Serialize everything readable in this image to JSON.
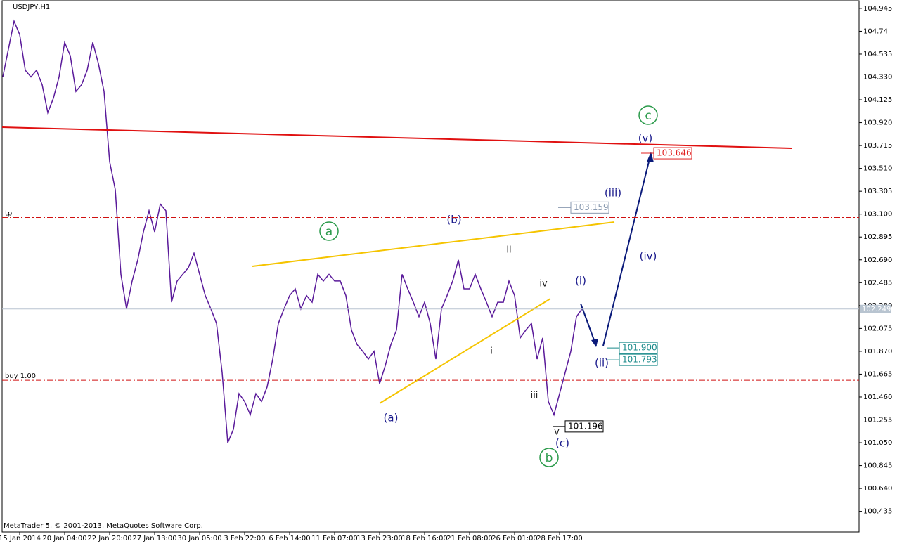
{
  "chart_data": {
    "type": "line",
    "title": "USDJPY,H1",
    "footer": "MetaTrader 5, © 2001-2013, MetaQuotes Software Corp.",
    "categories": [
      null,
      null,
      null,
      "15 Jan 2014",
      null,
      null,
      null,
      null,
      null,
      null,
      null,
      "20 Jan 04:00",
      null,
      null,
      null,
      null,
      null,
      null,
      null,
      "22 Jan 20:00",
      null,
      null,
      null,
      null,
      null,
      null,
      null,
      "27 Jan 13:00",
      null,
      null,
      null,
      null,
      null,
      null,
      null,
      "30 Jan 05:00",
      null,
      null,
      null,
      null,
      null,
      null,
      null,
      "3 Feb 22:00",
      null,
      null,
      null,
      null,
      null,
      null,
      null,
      "6 Feb 14:00",
      null,
      null,
      null,
      null,
      null,
      null,
      null,
      "11 Feb 07:00",
      null,
      null,
      null,
      null,
      null,
      null,
      null,
      "13 Feb 23:00",
      null,
      null,
      null,
      null,
      null,
      null,
      null,
      "18 Feb 16:00",
      null,
      null,
      null,
      null,
      null,
      null,
      null,
      "21 Feb 08:00",
      null,
      null,
      null,
      null,
      null,
      null,
      null,
      "26 Feb 01:00",
      null,
      null,
      null,
      null,
      null,
      null,
      null,
      "28 Feb 17:00",
      null,
      null,
      null,
      null
    ],
    "series": [
      {
        "name": "USDJPY",
        "color": "#5a1a9a",
        "values": [
          104.33,
          104.58,
          104.83,
          104.71,
          104.39,
          104.33,
          104.39,
          104.26,
          104.01,
          104.14,
          104.33,
          104.64,
          104.52,
          104.2,
          104.26,
          104.39,
          104.64,
          104.45,
          104.2,
          103.57,
          103.32,
          102.56,
          102.25,
          102.5,
          102.69,
          102.94,
          103.13,
          102.94,
          103.19,
          103.13,
          102.31,
          102.5,
          102.56,
          102.62,
          102.75,
          102.56,
          102.37,
          102.25,
          102.12,
          101.68,
          101.05,
          101.17,
          101.49,
          101.42,
          101.3,
          101.49,
          101.42,
          101.55,
          101.8,
          102.12,
          102.25,
          102.37,
          102.43,
          102.25,
          102.37,
          102.31,
          102.56,
          102.5,
          102.56,
          102.5,
          102.5,
          102.37,
          102.06,
          101.93,
          101.87,
          101.8,
          101.87,
          101.58,
          101.74,
          101.93,
          102.06,
          102.56,
          102.43,
          102.31,
          102.18,
          102.31,
          102.12,
          101.8,
          102.25,
          102.37,
          102.5,
          102.69,
          102.43,
          102.43,
          102.56,
          102.43,
          102.31,
          102.18,
          102.31,
          102.31,
          102.5,
          102.37,
          101.99,
          102.06,
          102.12,
          101.8,
          101.99,
          101.42,
          101.3,
          101.49,
          101.68,
          101.87,
          102.18,
          102.25
        ]
      }
    ],
    "ylim": [
      100.25,
      105.02
    ],
    "yticks": [
      100.435,
      {
        "value": 100.64,
        "label": "100.640"
      },
      100.845,
      {
        "value": 101.05,
        "label": "101.050"
      },
      101.255,
      {
        "value": 101.46,
        "label": "101.460"
      },
      101.665,
      {
        "value": 101.87,
        "label": "101.870"
      },
      102.075,
      {
        "value": 102.28,
        "label": "102.280"
      },
      102.485,
      {
        "value": 102.69,
        "label": "102.690"
      },
      102.895,
      {
        "value": 103.1,
        "label": "103.100"
      },
      103.305,
      {
        "value": 103.51,
        "label": "103.510"
      },
      103.715,
      {
        "value": 103.92,
        "label": "103.920"
      },
      104.125,
      {
        "value": 104.33,
        "label": "104.330"
      },
      104.535,
      104.74,
      104.945
    ],
    "last_price": 102.249,
    "levels": [
      {
        "label": "tp",
        "value": 103.07
      },
      {
        "label": "buy 1.00",
        "value": 101.61
      }
    ],
    "price_labels": [
      {
        "value": 103.646,
        "label": "103.646",
        "color": "#e02020"
      },
      {
        "value": 103.159,
        "label": "103.159",
        "color": "#8a9ab0"
      },
      {
        "value": 101.9,
        "label": "101.900",
        "color": "#1a8a8a"
      },
      {
        "value": 101.793,
        "label": "101.793",
        "color": "#1a8a8a"
      },
      {
        "value": 101.196,
        "label": "101.196",
        "color": "#000000"
      }
    ],
    "annotations": [
      "c",
      "(v)",
      "(iii)",
      "(iv)",
      "(i)",
      "(ii)",
      "(b)",
      "a",
      "ii",
      "iv",
      "i",
      "iii",
      "v",
      "(c)",
      "b",
      "(a)"
    ]
  }
}
